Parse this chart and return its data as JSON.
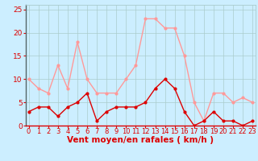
{
  "hours": [
    0,
    1,
    2,
    3,
    4,
    5,
    6,
    7,
    8,
    9,
    10,
    11,
    12,
    13,
    14,
    15,
    16,
    17,
    18,
    19,
    20,
    21,
    22,
    23
  ],
  "wind_avg": [
    3,
    4,
    4,
    2,
    4,
    5,
    7,
    1,
    3,
    4,
    4,
    4,
    5,
    8,
    10,
    8,
    3,
    0,
    1,
    3,
    1,
    1,
    0,
    1
  ],
  "wind_gust": [
    10,
    8,
    7,
    13,
    8,
    18,
    10,
    7,
    7,
    7,
    10,
    13,
    23,
    23,
    21,
    21,
    15,
    5,
    1,
    7,
    7,
    5,
    6,
    5
  ],
  "avg_color": "#dd0000",
  "gust_color": "#ff9999",
  "bg_color": "#cceeff",
  "grid_color": "#aacccc",
  "ylim": [
    0,
    26
  ],
  "yticks": [
    0,
    5,
    10,
    15,
    20,
    25
  ],
  "xlabel": "Vent moyen/en rafales ( km/h )",
  "tick_color": "#dd0000",
  "xlabel_color": "#dd0000",
  "label_fontsize": 6.5,
  "xlabel_fontsize": 7.5
}
